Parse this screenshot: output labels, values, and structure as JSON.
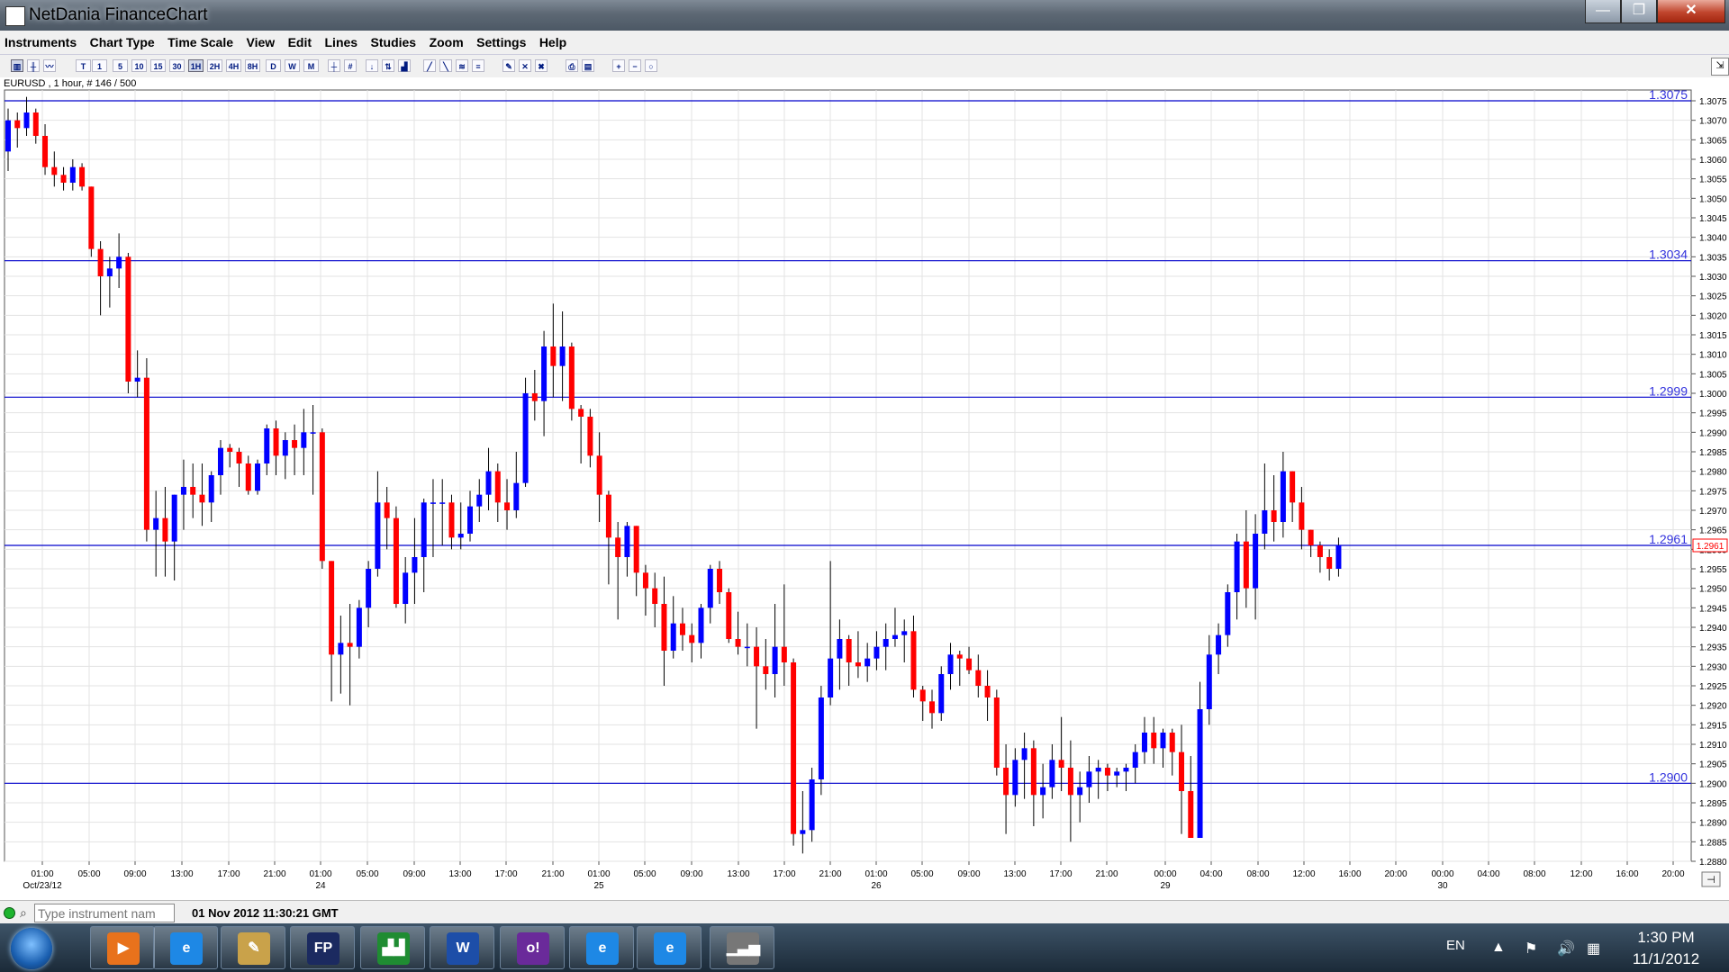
{
  "window": {
    "title": "NetDania FinanceChart",
    "min_glyph": "—",
    "max_glyph": "❐",
    "close_glyph": "✕"
  },
  "menu": [
    "Instruments",
    "Chart Type",
    "Time Scale",
    "View",
    "Edit",
    "Lines",
    "Studies",
    "Zoom",
    "Settings",
    "Help"
  ],
  "toolbar": {
    "timescale_buttons": [
      "T",
      "1",
      "5",
      "10",
      "15",
      "30",
      "1H",
      "2H",
      "4H",
      "8H",
      "D",
      "W",
      "M"
    ],
    "selected_timescale": "1H"
  },
  "chart_header": "EURUSD , 1 hour, # 146 / 500",
  "chart_data": {
    "type": "candlestick",
    "instrument": "EURUSD",
    "ylim": [
      1.288,
      1.3075
    ],
    "y_ticks": [
      "1.2880",
      "1.2885",
      "1.2890",
      "1.2895",
      "1.2900",
      "1.2905",
      "1.2910",
      "1.2915",
      "1.2920",
      "1.2925",
      "1.2930",
      "1.2935",
      "1.2940",
      "1.2945",
      "1.2950",
      "1.2955",
      "1.2960",
      "1.2965",
      "1.2970",
      "1.2975",
      "1.2980",
      "1.2985",
      "1.2990",
      "1.2995",
      "1.3000",
      "1.3005",
      "1.3010",
      "1.3015",
      "1.3020",
      "1.3025",
      "1.3030",
      "1.3035",
      "1.3040",
      "1.3045",
      "1.3050",
      "1.3055",
      "1.3060",
      "1.3065",
      "1.3070",
      "1.3075"
    ],
    "x_ticks": [
      "01:00",
      "05:00",
      "09:00",
      "13:00",
      "17:00",
      "21:00",
      "01:00",
      "05:00",
      "09:00",
      "13:00",
      "17:00",
      "21:00",
      "01:00",
      "05:00",
      "09:00",
      "13:00",
      "17:00",
      "21:00",
      "01:00",
      "05:00",
      "09:00",
      "13:00",
      "17:00",
      "21:00",
      "00:00",
      "04:00",
      "08:00",
      "12:00",
      "16:00",
      "20:00",
      "00:00",
      "04:00",
      "08:00",
      "12:00",
      "16:00",
      "20:00"
    ],
    "date_labels": [
      "Oct/23/12",
      "24",
      "25",
      "26",
      "29",
      "30"
    ],
    "horizontal_lines": [
      {
        "value": 1.3075,
        "label": "1.3075"
      },
      {
        "value": 1.3034,
        "label": "1.3034"
      },
      {
        "value": 1.2999,
        "label": "1.2999"
      },
      {
        "value": 1.2961,
        "label": "1.2961"
      },
      {
        "value": 1.29,
        "label": "1.2900"
      }
    ],
    "last_price": "1.2961",
    "up_color": "#0000ff",
    "down_color": "#ff0000",
    "grid": true
  },
  "statusbar": {
    "search_placeholder": "Type instrument nam",
    "datetime": "01 Nov 2012 11:30:21 GMT"
  },
  "taskbar": {
    "apps": [
      {
        "icon": "media-player-icon",
        "glyph": "▶",
        "bg": "#e8721c"
      },
      {
        "icon": "internet-explorer-icon",
        "glyph": "e",
        "bg": "#1e88e5"
      },
      {
        "icon": "paint-icon",
        "glyph": "✎",
        "bg": "#c9a24a"
      },
      {
        "icon": "fp-app-icon",
        "glyph": "FP",
        "bg": "#1b2a60"
      },
      {
        "icon": "factory-app-icon",
        "glyph": "▟▟",
        "bg": "#1f8c32"
      },
      {
        "icon": "word-icon",
        "glyph": "W",
        "bg": "#1d4ea8"
      },
      {
        "icon": "yahoo-messenger-icon",
        "glyph": "o!",
        "bg": "#6a2a9a"
      },
      {
        "icon": "internet-explorer-icon-2",
        "glyph": "e",
        "bg": "#1e88e5"
      },
      {
        "icon": "internet-explorer-icon-3",
        "glyph": "e",
        "bg": "#1e88e5"
      },
      {
        "icon": "netdania-chart-icon",
        "glyph": "▁▃▅",
        "bg": "#777777"
      }
    ],
    "lang": "EN",
    "time": "1:30 PM",
    "date": "11/1/2012"
  }
}
